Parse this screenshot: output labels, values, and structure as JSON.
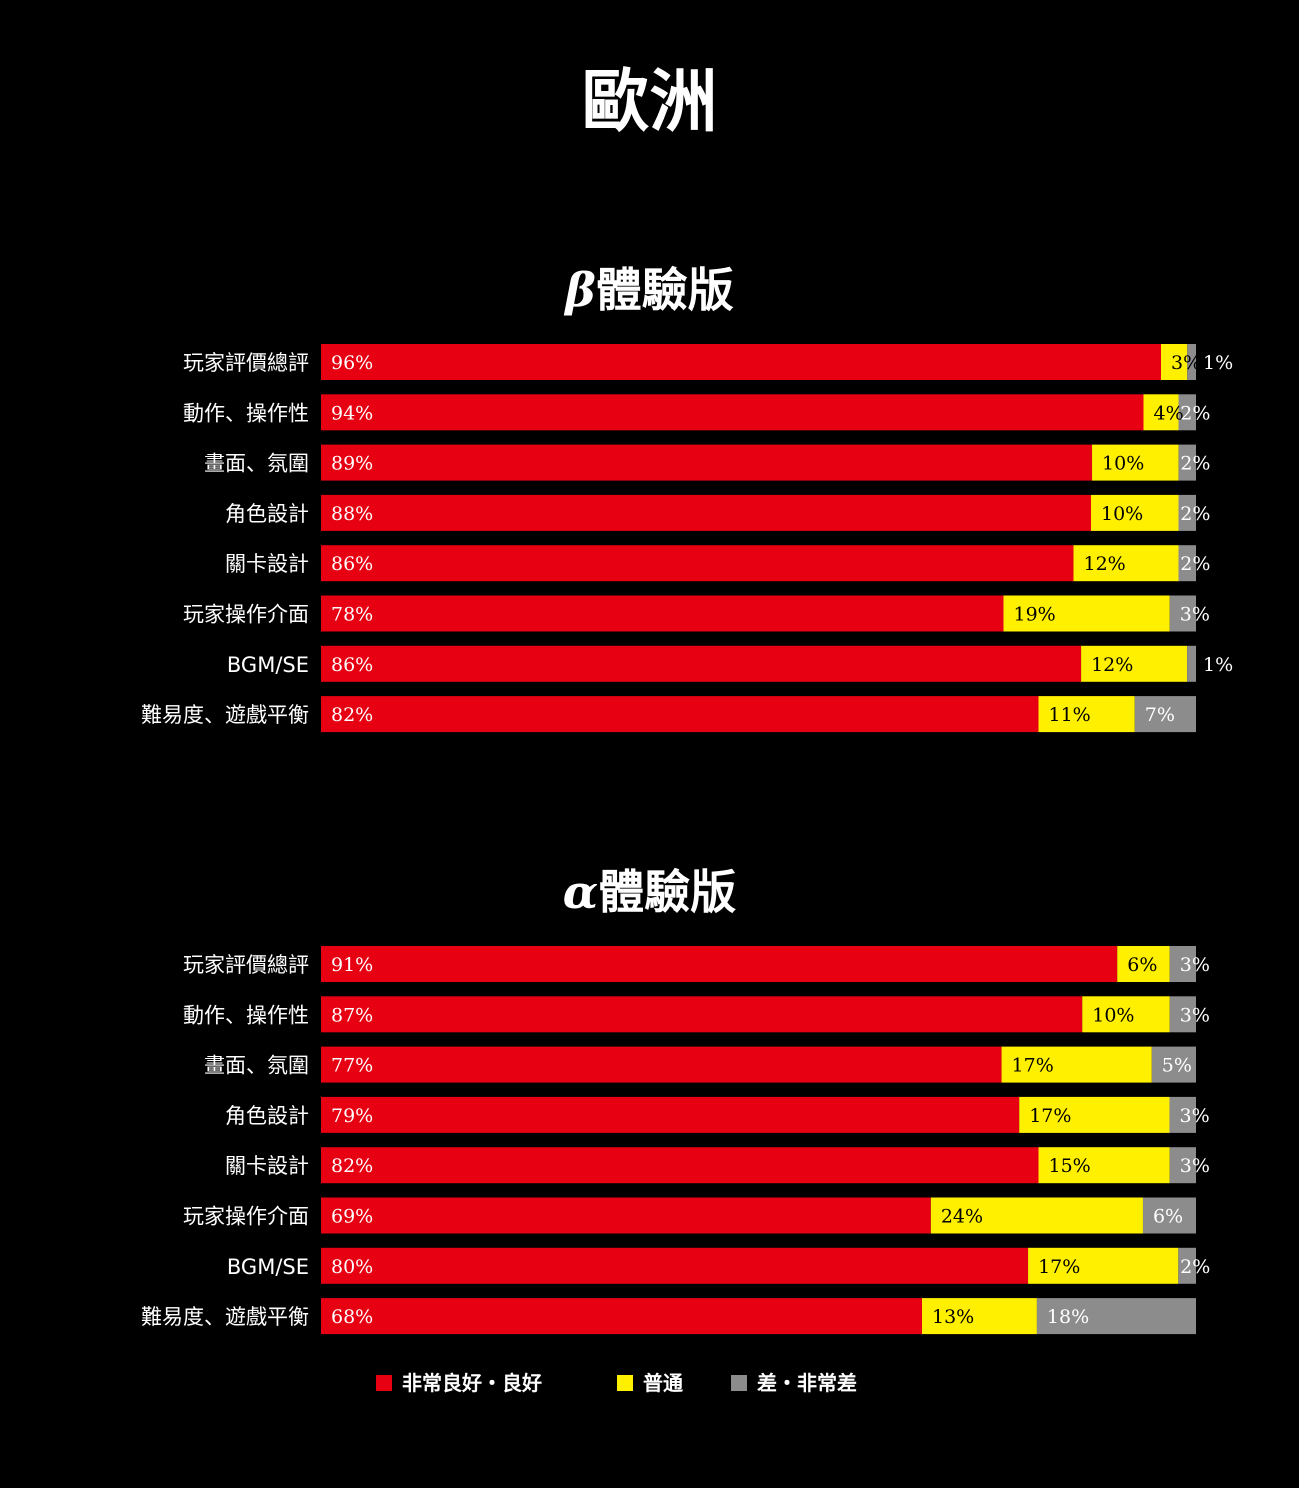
{
  "page_title": "歐洲",
  "colors": {
    "good": "#e60012",
    "neutral": "#fff000",
    "bad": "#8c8c8c",
    "background": "#000000"
  },
  "legend": [
    {
      "label": "非常良好・良好",
      "color": "#e60012"
    },
    {
      "label": "普通",
      "color": "#fff000"
    },
    {
      "label": "差・非常差",
      "color": "#8c8c8c"
    }
  ],
  "chart_data": [
    {
      "type": "bar",
      "orientation": "horizontal",
      "stacked": true,
      "title_greek": "β",
      "title_text": "體驗版",
      "categories": [
        "玩家評價總評",
        "動作、操作性",
        "畫面、氛圍",
        "角色設計",
        "關卡設計",
        "玩家操作介面",
        "BGM/SE",
        "難易度、遊戲平衡"
      ],
      "series": [
        {
          "name": "非常良好・良好",
          "values": [
            96,
            94,
            89,
            88,
            86,
            78,
            86,
            82
          ]
        },
        {
          "name": "普通",
          "values": [
            3,
            4,
            10,
            10,
            12,
            19,
            12,
            11
          ]
        },
        {
          "name": "差・非常差",
          "values": [
            1,
            2,
            2,
            2,
            2,
            3,
            1,
            7
          ]
        }
      ],
      "value_labels": [
        [
          "96%",
          "3%",
          "1%"
        ],
        [
          "94%",
          "4%",
          "2%"
        ],
        [
          "89%",
          "10%",
          "2%"
        ],
        [
          "88%",
          "10%",
          "2%"
        ],
        [
          "86%",
          "12%",
          "2%"
        ],
        [
          "78%",
          "19%",
          "3%"
        ],
        [
          "86%",
          "12%",
          "1%"
        ],
        [
          "82%",
          "11%",
          "7%"
        ]
      ],
      "xlim": [
        0,
        100
      ]
    },
    {
      "type": "bar",
      "orientation": "horizontal",
      "stacked": true,
      "title_greek": "α",
      "title_text": "體驗版",
      "categories": [
        "玩家評價總評",
        "動作、操作性",
        "畫面、氛圍",
        "角色設計",
        "關卡設計",
        "玩家操作介面",
        "BGM/SE",
        "難易度、遊戲平衡"
      ],
      "series": [
        {
          "name": "非常良好・良好",
          "values": [
            91,
            87,
            77,
            79,
            82,
            69,
            80,
            68
          ]
        },
        {
          "name": "普通",
          "values": [
            6,
            10,
            17,
            17,
            15,
            24,
            17,
            13
          ]
        },
        {
          "name": "差・非常差",
          "values": [
            3,
            3,
            5,
            3,
            3,
            6,
            2,
            18
          ]
        }
      ],
      "value_labels": [
        [
          "91%",
          "6%",
          "3%"
        ],
        [
          "87%",
          "10%",
          "3%"
        ],
        [
          "77%",
          "17%",
          "5%"
        ],
        [
          "79%",
          "17%",
          "3%"
        ],
        [
          "82%",
          "15%",
          "3%"
        ],
        [
          "69%",
          "24%",
          "6%"
        ],
        [
          "80%",
          "17%",
          "2%"
        ],
        [
          "68%",
          "13%",
          "18%"
        ]
      ],
      "xlim": [
        0,
        100
      ]
    }
  ]
}
